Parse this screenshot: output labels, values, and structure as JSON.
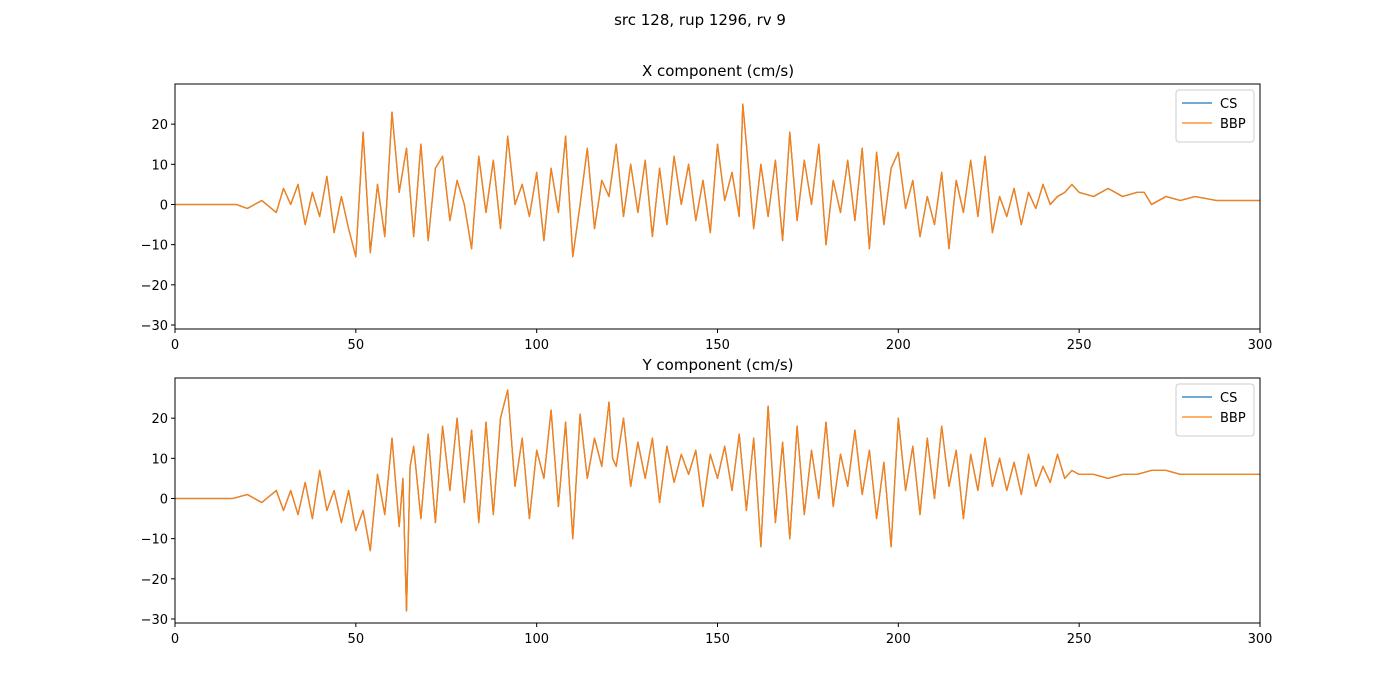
{
  "suptitle": "src 128, rup 1296, rv 9",
  "colors": {
    "cs": "#1f77b4",
    "bbp": "#ff7f0e"
  },
  "chart_data": [
    {
      "type": "line",
      "title": "X component (cm/s)",
      "xlabel": "",
      "ylabel": "",
      "xlim": [
        0,
        300
      ],
      "ylim": [
        -31,
        30
      ],
      "xticks": [
        0,
        50,
        100,
        150,
        200,
        250,
        300
      ],
      "yticks": [
        -30,
        -20,
        -10,
        0,
        10,
        20
      ],
      "grid": false,
      "legend_position": "top-right",
      "series": [
        {
          "name": "CS",
          "color": "#1f77b4"
        },
        {
          "name": "BBP",
          "color": "#ff7f0e"
        }
      ],
      "x": [
        0,
        10,
        17,
        20,
        24,
        28,
        30,
        32,
        34,
        36,
        38,
        40,
        42,
        44,
        46,
        48,
        50,
        52,
        54,
        56,
        58,
        60,
        62,
        64,
        66,
        68,
        70,
        72,
        74,
        76,
        78,
        80,
        82,
        84,
        86,
        88,
        90,
        92,
        94,
        96,
        98,
        100,
        102,
        104,
        106,
        108,
        110,
        112,
        114,
        116,
        118,
        120,
        122,
        124,
        126,
        128,
        130,
        132,
        134,
        136,
        138,
        140,
        142,
        144,
        146,
        148,
        150,
        152,
        154,
        156,
        157,
        158,
        160,
        162,
        164,
        166,
        168,
        170,
        172,
        174,
        176,
        178,
        180,
        182,
        184,
        186,
        188,
        190,
        192,
        194,
        196,
        198,
        200,
        202,
        204,
        206,
        208,
        210,
        212,
        214,
        216,
        218,
        220,
        222,
        224,
        226,
        228,
        230,
        232,
        234,
        236,
        238,
        240,
        242,
        244,
        246,
        248,
        250,
        254,
        258,
        262,
        266,
        268,
        270,
        274,
        278,
        282,
        288,
        294,
        300
      ],
      "y": [
        0,
        0,
        0,
        -1,
        1,
        -2,
        4,
        0,
        5,
        -5,
        3,
        -3,
        7,
        -7,
        2,
        -6,
        -13,
        18,
        -12,
        5,
        -8,
        23,
        3,
        14,
        -8,
        15,
        -9,
        9,
        12,
        -4,
        6,
        0,
        -11,
        12,
        -2,
        11,
        -6,
        17,
        0,
        5,
        -3,
        8,
        -9,
        9,
        -2,
        17,
        -13,
        0,
        14,
        -6,
        6,
        2,
        15,
        -3,
        10,
        -2,
        11,
        -8,
        9,
        -5,
        12,
        0,
        10,
        -4,
        6,
        -7,
        15,
        1,
        8,
        -3,
        25,
        15,
        -6,
        10,
        -3,
        11,
        -9,
        18,
        -4,
        11,
        0,
        15,
        -10,
        6,
        -2,
        11,
        -4,
        14,
        -11,
        13,
        -5,
        9,
        13,
        -1,
        6,
        -8,
        2,
        -5,
        8,
        -11,
        6,
        -2,
        11,
        -3,
        12,
        -7,
        2,
        -3,
        4,
        -5,
        3,
        -1,
        5,
        0,
        2,
        3,
        5,
        3,
        2,
        4,
        2,
        3,
        3,
        0,
        2,
        1,
        2,
        1,
        1,
        1
      ]
    },
    {
      "type": "line",
      "title": "Y component (cm/s)",
      "xlabel": "",
      "ylabel": "",
      "xlim": [
        0,
        300
      ],
      "ylim": [
        -31,
        30
      ],
      "xticks": [
        0,
        50,
        100,
        150,
        200,
        250,
        300
      ],
      "yticks": [
        -30,
        -20,
        -10,
        0,
        10,
        20
      ],
      "grid": false,
      "legend_position": "top-right",
      "series": [
        {
          "name": "CS",
          "color": "#1f77b4"
        },
        {
          "name": "BBP",
          "color": "#ff7f0e"
        }
      ],
      "x": [
        0,
        10,
        16,
        20,
        24,
        28,
        30,
        32,
        34,
        36,
        38,
        40,
        42,
        44,
        46,
        48,
        50,
        52,
        54,
        56,
        58,
        60,
        62,
        63,
        64,
        65,
        66,
        68,
        70,
        72,
        74,
        76,
        78,
        80,
        82,
        84,
        86,
        88,
        90,
        92,
        94,
        96,
        98,
        100,
        102,
        104,
        106,
        108,
        110,
        112,
        114,
        116,
        118,
        120,
        121,
        122,
        124,
        126,
        128,
        130,
        132,
        134,
        136,
        138,
        140,
        142,
        144,
        146,
        148,
        150,
        152,
        154,
        156,
        158,
        160,
        162,
        164,
        166,
        168,
        170,
        172,
        174,
        176,
        178,
        180,
        182,
        184,
        186,
        188,
        190,
        192,
        194,
        196,
        198,
        200,
        202,
        204,
        206,
        208,
        210,
        212,
        214,
        216,
        218,
        220,
        222,
        224,
        226,
        228,
        230,
        232,
        234,
        236,
        238,
        240,
        242,
        244,
        246,
        248,
        250,
        254,
        258,
        262,
        266,
        270,
        274,
        278,
        284,
        290,
        296,
        300
      ],
      "y": [
        0,
        0,
        0,
        1,
        -1,
        2,
        -3,
        2,
        -4,
        4,
        -5,
        7,
        -3,
        2,
        -6,
        2,
        -8,
        -3,
        -13,
        6,
        -4,
        15,
        -7,
        5,
        -28,
        8,
        13,
        -5,
        16,
        -6,
        18,
        2,
        20,
        -1,
        17,
        -6,
        19,
        -4,
        20,
        27,
        3,
        15,
        -5,
        12,
        5,
        22,
        -2,
        19,
        -10,
        21,
        5,
        15,
        8,
        24,
        10,
        8,
        20,
        3,
        14,
        5,
        15,
        -1,
        13,
        4,
        11,
        6,
        12,
        -2,
        11,
        5,
        13,
        2,
        16,
        -3,
        15,
        -12,
        23,
        -6,
        14,
        -10,
        18,
        -4,
        12,
        0,
        19,
        -2,
        11,
        3,
        17,
        1,
        12,
        -5,
        9,
        -12,
        20,
        2,
        13,
        -4,
        15,
        0,
        18,
        3,
        12,
        -5,
        11,
        2,
        15,
        3,
        10,
        2,
        9,
        1,
        11,
        3,
        8,
        4,
        11,
        5,
        7,
        6,
        6,
        5,
        6,
        6,
        7,
        7,
        6,
        6,
        6,
        6,
        6
      ]
    }
  ]
}
